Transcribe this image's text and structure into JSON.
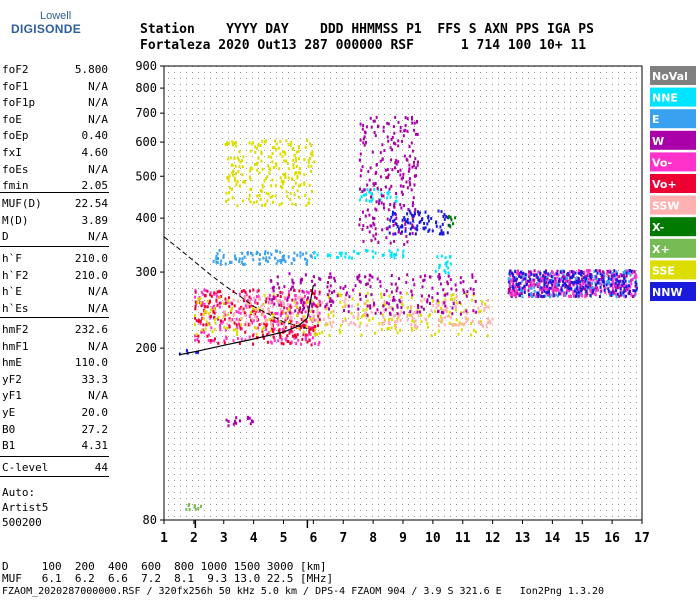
{
  "logo": {
    "line1": "Lowell",
    "line2": "DIGISONDE"
  },
  "header": {
    "row1": "Station    YYYY DAY    DDD HHMMSS P1  FFS S AXN PPS IGA PS",
    "row2": "Fortaleza 2020 Out13 287 000000 RSF      1 714 100 10+ 11"
  },
  "params_group1": [
    {
      "name": "foF2",
      "value": "5.800"
    },
    {
      "name": "foF1",
      "value": "N/A"
    },
    {
      "name": "foF1p",
      "value": "N/A"
    },
    {
      "name": "foE",
      "value": "N/A"
    },
    {
      "name": "foEp",
      "value": "0.40"
    },
    {
      "name": "fxI",
      "value": "4.60"
    },
    {
      "name": "foEs",
      "value": "N/A"
    },
    {
      "name": "fmin",
      "value": "2.05"
    }
  ],
  "params_group2": [
    {
      "name": "MUF(D)",
      "value": "22.54"
    },
    {
      "name": "M(D)",
      "value": "3.89"
    },
    {
      "name": "D",
      "value": "N/A"
    }
  ],
  "params_group3": [
    {
      "name": "h`F",
      "value": "210.0"
    },
    {
      "name": "h`F2",
      "value": "210.0"
    },
    {
      "name": "h`E",
      "value": "N/A"
    },
    {
      "name": "h`Es",
      "value": "N/A"
    }
  ],
  "params_group4": [
    {
      "name": "hmF2",
      "value": "232.6"
    },
    {
      "name": "hmF1",
      "value": "N/A"
    },
    {
      "name": "hmE",
      "value": "110.0"
    },
    {
      "name": "yF2",
      "value": "33.3"
    },
    {
      "name": "yF1",
      "value": "N/A"
    },
    {
      "name": "yE",
      "value": "20.0"
    },
    {
      "name": "B0",
      "value": "27.2"
    },
    {
      "name": "B1",
      "value": "4.31"
    }
  ],
  "params_group5": [
    {
      "name": "C-level",
      "value": "44"
    }
  ],
  "auto_info": {
    "label": "Auto:",
    "artist": "Artist5",
    "code": "500200"
  },
  "footer": {
    "d_row": "D     100  200  400  600  800 1000 1500 3000 [km]",
    "muf_row": "MUF   6.1  6.2  6.6  7.2  8.1  9.3 13.0 22.5 [MHz]",
    "file_row": "FZAOM_2020287000000.RSF / 320fx256h 50 kHz 5.0 km / DPS-4 FZAOM 904 / 3.9 S 321.6 E   Ion2Png 1.3.20"
  },
  "legend": [
    {
      "label": "NoVal",
      "color": "#808080"
    },
    {
      "label": "NNE",
      "color": "#00e5ff"
    },
    {
      "label": "E",
      "color": "#3aa0f0"
    },
    {
      "label": "W",
      "color": "#aa00aa"
    },
    {
      "label": "Vo-",
      "color": "#ff33cc"
    },
    {
      "label": "Vo+",
      "color": "#ee0033"
    },
    {
      "label": "SSW",
      "color": "#ffb0b0"
    },
    {
      "label": "X-",
      "color": "#007a00"
    },
    {
      "label": "X+",
      "color": "#77bb55"
    },
    {
      "label": "SSE",
      "color": "#dddd00"
    },
    {
      "label": "NNW",
      "color": "#1a1add"
    }
  ],
  "chart_data": {
    "type": "scatter",
    "title": "",
    "xlabel": "",
    "ylabel": "",
    "xlim": [
      1,
      17
    ],
    "ylim": [
      80,
      900
    ],
    "y_scale": "log",
    "x_ticks": [
      1,
      2,
      3,
      4,
      5,
      6,
      7,
      8,
      9,
      10,
      11,
      12,
      13,
      14,
      15,
      16,
      17
    ],
    "y_ticks": [
      80,
      200,
      300,
      400,
      500,
      600,
      700,
      800,
      900
    ],
    "grid": true,
    "legend_position": "right",
    "clusters": [
      {
        "polarization": "NNW",
        "x": [
          1.5,
          2.3
        ],
        "y": [
          195,
          200
        ]
      },
      {
        "polarization": "Vo-",
        "x": [
          2.0,
          6.2
        ],
        "y": [
          205,
          275
        ]
      },
      {
        "polarization": "Vo+",
        "x": [
          2.0,
          6.2
        ],
        "y": [
          205,
          275
        ]
      },
      {
        "polarization": "SSE",
        "x": [
          2.0,
          11.8
        ],
        "y": [
          215,
          270
        ]
      },
      {
        "polarization": "SSW",
        "x": [
          3.0,
          12.0
        ],
        "y": [
          225,
          265
        ]
      },
      {
        "polarization": "W",
        "x": [
          4.5,
          11.5
        ],
        "y": [
          240,
          300
        ]
      },
      {
        "polarization": "E",
        "x": [
          2.6,
          6.0
        ],
        "y": [
          315,
          340
        ]
      },
      {
        "polarization": "NNE",
        "x": [
          6.0,
          9.0
        ],
        "y": [
          325,
          340
        ]
      },
      {
        "polarization": "SSE",
        "x": [
          3.0,
          6.0
        ],
        "y": [
          430,
          610
        ]
      },
      {
        "polarization": "NNE",
        "x": [
          7.5,
          8.8
        ],
        "y": [
          440,
          470
        ]
      },
      {
        "polarization": "W",
        "x": [
          7.5,
          9.5
        ],
        "y": [
          350,
          690
        ]
      },
      {
        "polarization": "NNW",
        "x": [
          8.5,
          10.5
        ],
        "y": [
          370,
          420
        ]
      },
      {
        "polarization": "NNE",
        "x": [
          10.0,
          10.6
        ],
        "y": [
          300,
          330
        ]
      },
      {
        "polarization": "X-",
        "x": [
          10.4,
          10.8
        ],
        "y": [
          385,
          410
        ]
      },
      {
        "polarization": "E",
        "x": [
          12.5,
          16.8
        ],
        "y": [
          265,
          305
        ]
      },
      {
        "polarization": "W",
        "x": [
          12.5,
          16.8
        ],
        "y": [
          265,
          305
        ]
      },
      {
        "polarization": "Vo-",
        "x": [
          12.5,
          16.8
        ],
        "y": [
          265,
          305
        ]
      },
      {
        "polarization": "NNW",
        "x": [
          12.5,
          16.8
        ],
        "y": [
          265,
          305
        ]
      },
      {
        "polarization": "X+",
        "x": [
          1.6,
          2.4
        ],
        "y": [
          85,
          88
        ]
      },
      {
        "polarization": "W",
        "x": [
          3.0,
          4.0
        ],
        "y": [
          133,
          140
        ]
      }
    ],
    "profile_curve": {
      "x": [
        1.5,
        2.0,
        3.0,
        4.0,
        5.0,
        5.5,
        5.8,
        6.0
      ],
      "y": [
        193,
        196,
        203,
        210,
        218,
        225,
        235,
        280
      ]
    },
    "dashed_curve": {
      "x": [
        1.0,
        1.5,
        2.0,
        2.5,
        3.0,
        3.5,
        4.0,
        5.0,
        5.8
      ],
      "y": [
        362,
        340,
        318,
        298,
        280,
        265,
        250,
        230,
        222
      ]
    },
    "fmin_marker": 2.05,
    "foF2_marker": 5.8
  }
}
